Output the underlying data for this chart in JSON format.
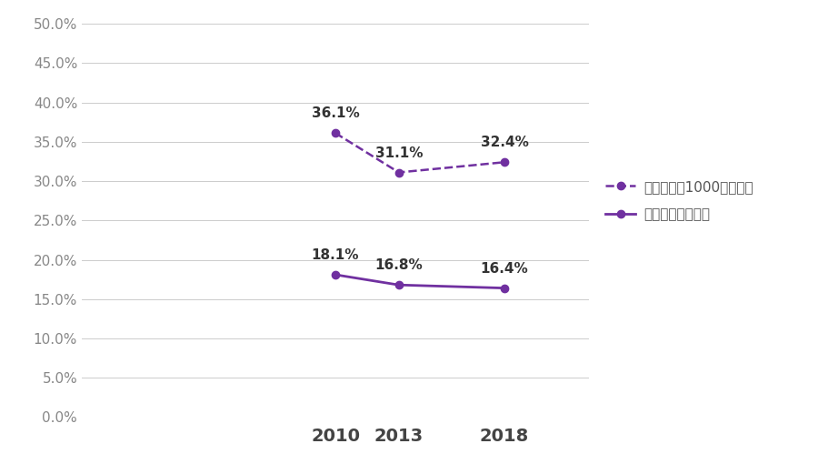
{
  "years": [
    2010,
    2013,
    2018
  ],
  "series_1000": [
    0.361,
    0.311,
    0.324
  ],
  "series_all": [
    0.181,
    0.168,
    0.164
  ],
  "labels_1000": [
    "36.1%",
    "31.1%",
    "32.4%"
  ],
  "labels_all": [
    "18.1%",
    "16.8%",
    "16.4%"
  ],
  "legend_1000": "社内公募（1000人以上）",
  "legend_all": "社内公募（全体）",
  "color_1000": "#7030a0",
  "color_all": "#7030a0",
  "label_color": "#333333",
  "ylim": [
    0.0,
    0.5
  ],
  "yticks": [
    0.0,
    0.05,
    0.1,
    0.15,
    0.2,
    0.25,
    0.3,
    0.35,
    0.4,
    0.45,
    0.5
  ],
  "background_color": "#ffffff",
  "grid_color": "#cccccc",
  "label_fontsize": 11,
  "tick_fontsize": 11,
  "legend_fontsize": 11,
  "xlim_left": 1995,
  "xlim_right": 2025
}
